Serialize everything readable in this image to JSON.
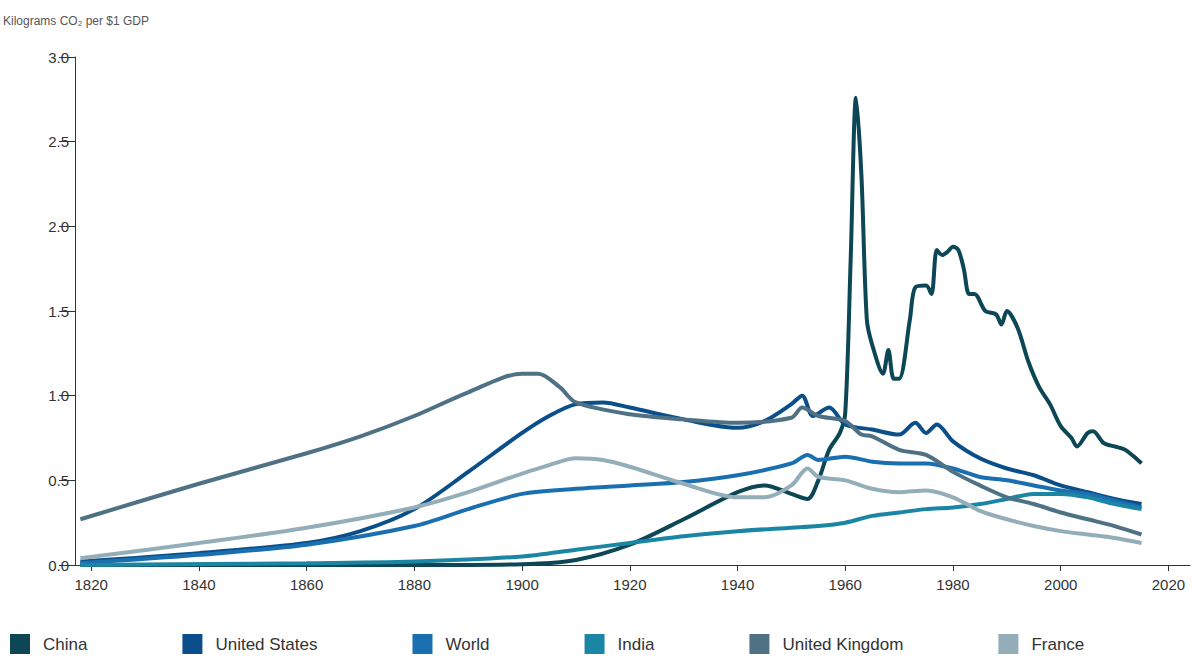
{
  "chart_data": {
    "type": "line",
    "y_label": "Kilograms CO₂ per $1 GDP",
    "xlim": [
      1817,
      2024
    ],
    "xticks": [
      1820,
      1840,
      1860,
      1880,
      1900,
      1920,
      1940,
      1960,
      1980,
      2000,
      2020
    ],
    "ylim": [
      0,
      3
    ],
    "yticks": [
      {
        "value": 0,
        "label": "0.0"
      },
      {
        "value": 0.5,
        "label": "0.5"
      },
      {
        "value": 1,
        "label": "1.0"
      },
      {
        "value": 1.5,
        "label": "1.5"
      },
      {
        "value": 2,
        "label": "2.0"
      },
      {
        "value": 2.5,
        "label": "2.5"
      },
      {
        "value": 3,
        "label": "3.0"
      }
    ],
    "grid": false,
    "legend": "bottom",
    "series": [
      {
        "name": "China",
        "color": "#0d4756",
        "x": [
          1818,
          1880,
          1900,
          1910,
          1920,
          1930,
          1940,
          1945,
          1950,
          1953,
          1955,
          1957,
          1959,
          1960,
          1961,
          1962,
          1963,
          1964,
          1965,
          1967,
          1968,
          1969,
          1970,
          1972,
          1973,
          1975,
          1976,
          1977,
          1978,
          1979,
          1980,
          1981,
          1982,
          1983,
          1984,
          1986,
          1988,
          1989,
          1990,
          1992,
          1994,
          1996,
          1998,
          2000,
          2002,
          2003,
          2005,
          2006,
          2008,
          2010,
          2012,
          2015
        ],
        "values": [
          0,
          0,
          0.005,
          0.03,
          0.12,
          0.27,
          0.43,
          0.47,
          0.42,
          0.39,
          0.5,
          0.68,
          0.78,
          0.9,
          1.8,
          2.76,
          2.3,
          1.45,
          1.3,
          1.13,
          1.27,
          1.1,
          1.1,
          1.45,
          1.64,
          1.65,
          1.6,
          1.86,
          1.83,
          1.85,
          1.88,
          1.86,
          1.75,
          1.6,
          1.6,
          1.5,
          1.48,
          1.42,
          1.5,
          1.4,
          1.2,
          1.05,
          0.95,
          0.82,
          0.75,
          0.7,
          0.78,
          0.79,
          0.72,
          0.7,
          0.68,
          0.6
        ]
      },
      {
        "name": "United States",
        "color": "#0b4f8a",
        "x": [
          1818,
          1840,
          1860,
          1870,
          1880,
          1890,
          1900,
          1905,
          1910,
          1915,
          1920,
          1930,
          1940,
          1945,
          1950,
          1952,
          1954,
          1957,
          1960,
          1965,
          1970,
          1973,
          1975,
          1977,
          1980,
          1985,
          1990,
          1995,
          2000,
          2005,
          2010,
          2015
        ],
        "values": [
          0.02,
          0.07,
          0.13,
          0.2,
          0.33,
          0.55,
          0.78,
          0.88,
          0.95,
          0.96,
          0.93,
          0.86,
          0.81,
          0.85,
          0.95,
          1.0,
          0.88,
          0.93,
          0.83,
          0.8,
          0.77,
          0.84,
          0.78,
          0.83,
          0.73,
          0.63,
          0.57,
          0.53,
          0.47,
          0.43,
          0.39,
          0.36
        ]
      },
      {
        "name": "World",
        "color": "#1a6fb0",
        "x": [
          1818,
          1840,
          1860,
          1880,
          1890,
          1900,
          1910,
          1920,
          1930,
          1940,
          1950,
          1953,
          1955,
          1960,
          1965,
          1970,
          1975,
          1980,
          1985,
          1990,
          1995,
          2000,
          2005,
          2010,
          2015
        ],
        "values": [
          0.01,
          0.06,
          0.12,
          0.23,
          0.33,
          0.42,
          0.45,
          0.47,
          0.49,
          0.53,
          0.6,
          0.65,
          0.62,
          0.64,
          0.61,
          0.6,
          0.6,
          0.57,
          0.52,
          0.5,
          0.47,
          0.44,
          0.42,
          0.38,
          0.34
        ]
      },
      {
        "name": "India",
        "color": "#1b86a3",
        "x": [
          1818,
          1860,
          1880,
          1900,
          1910,
          1920,
          1930,
          1940,
          1950,
          1955,
          1960,
          1965,
          1970,
          1975,
          1980,
          1985,
          1990,
          1995,
          2000,
          2005,
          2010,
          2015
        ],
        "values": [
          0,
          0.01,
          0.02,
          0.05,
          0.09,
          0.13,
          0.17,
          0.2,
          0.22,
          0.23,
          0.25,
          0.29,
          0.31,
          0.33,
          0.34,
          0.36,
          0.39,
          0.42,
          0.42,
          0.4,
          0.36,
          0.33
        ]
      },
      {
        "name": "United Kingdom",
        "color": "#4f7184",
        "x": [
          1818,
          1840,
          1860,
          1870,
          1880,
          1890,
          1900,
          1903,
          1907,
          1910,
          1920,
          1930,
          1940,
          1950,
          1952,
          1955,
          1960,
          1963,
          1965,
          1970,
          1975,
          1980,
          1985,
          1990,
          1995,
          2000,
          2005,
          2010,
          2015
        ],
        "values": [
          0.27,
          0.48,
          0.66,
          0.76,
          0.88,
          1.02,
          1.13,
          1.13,
          1.05,
          0.96,
          0.89,
          0.86,
          0.84,
          0.87,
          0.93,
          0.88,
          0.85,
          0.77,
          0.76,
          0.68,
          0.65,
          0.55,
          0.47,
          0.4,
          0.36,
          0.31,
          0.27,
          0.23,
          0.18
        ]
      },
      {
        "name": "France",
        "color": "#93aeb9",
        "x": [
          1818,
          1840,
          1860,
          1880,
          1890,
          1900,
          1905,
          1910,
          1915,
          1920,
          1930,
          1940,
          1945,
          1950,
          1953,
          1955,
          1960,
          1965,
          1970,
          1975,
          1980,
          1985,
          1990,
          1995,
          2000,
          2005,
          2010,
          2015
        ],
        "values": [
          0.04,
          0.13,
          0.22,
          0.34,
          0.43,
          0.54,
          0.59,
          0.63,
          0.62,
          0.58,
          0.48,
          0.4,
          0.4,
          0.47,
          0.57,
          0.52,
          0.5,
          0.45,
          0.43,
          0.44,
          0.4,
          0.32,
          0.27,
          0.23,
          0.2,
          0.18,
          0.16,
          0.13
        ]
      }
    ]
  }
}
